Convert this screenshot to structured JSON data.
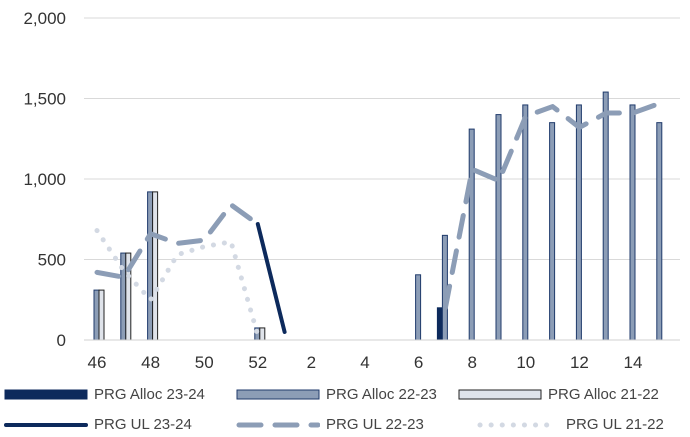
{
  "chart_data": {
    "type": "bar",
    "categories": [
      "46",
      "47",
      "48",
      "49",
      "50",
      "51",
      "52",
      "53",
      "1",
      "2",
      "3",
      "4",
      "5",
      "6",
      "7",
      "8",
      "9",
      "10",
      "11",
      "12",
      "13",
      "14"
    ],
    "x_tick_labels": [
      "46",
      "48",
      "50",
      "52",
      "2",
      "4",
      "6",
      "8",
      "10",
      "12",
      "14"
    ],
    "y_tick_labels": [
      "0",
      "500",
      "1,000",
      "1,500",
      "2,000"
    ],
    "ylim": [
      0,
      2000
    ],
    "grid": true,
    "legend_position": "bottom",
    "colors": {
      "alloc_23_24": "#0d2a5c",
      "alloc_22_23": "#8c9db6",
      "alloc_21_22": "#dfe3ea",
      "ul_23_24": "#0d2a5c",
      "ul_22_23": "#8c9db6",
      "ul_21_22": "#d3d9e3",
      "bar_edge": "#1f3a6b",
      "grid": "#d9d9d9"
    },
    "series": [
      {
        "name": "PRG Alloc 23-24",
        "kind": "bar",
        "values": [
          null,
          null,
          null,
          null,
          null,
          null,
          null,
          null,
          null,
          null,
          null,
          null,
          null,
          200,
          null,
          null,
          null,
          null,
          null,
          null,
          null,
          null
        ]
      },
      {
        "name": "PRG Alloc 22-23",
        "kind": "bar",
        "values": [
          310,
          540,
          920,
          null,
          null,
          null,
          75,
          null,
          null,
          null,
          null,
          null,
          405,
          650,
          1310,
          1400,
          1460,
          1350,
          1460,
          1540,
          1460,
          1350
        ]
      },
      {
        "name": "PRG Alloc 21-22",
        "kind": "bar",
        "values": [
          310,
          540,
          920,
          null,
          null,
          null,
          75,
          null,
          null,
          null,
          null,
          null,
          null,
          null,
          null,
          null,
          null,
          null,
          null,
          null,
          null,
          null
        ]
      },
      {
        "name": "PRG UL 23-24",
        "kind": "line",
        "style": "solid",
        "values": [
          null,
          null,
          null,
          null,
          null,
          null,
          720,
          50,
          null,
          null,
          null,
          null,
          null,
          null,
          null,
          null,
          null,
          null,
          null,
          null,
          null,
          null
        ]
      },
      {
        "name": "PRG UL 22-23",
        "kind": "line",
        "style": "dashed",
        "values": [
          420,
          390,
          660,
          600,
          620,
          840,
          720,
          null,
          null,
          null,
          null,
          null,
          null,
          200,
          1060,
          990,
          1390,
          1450,
          1320,
          1410,
          1410,
          1470
        ]
      },
      {
        "name": "PRG UL 21-22",
        "kind": "line",
        "style": "dotted",
        "values": [
          680,
          430,
          250,
          530,
          580,
          610,
          30,
          null,
          null,
          null,
          null,
          null,
          null,
          null,
          null,
          null,
          null,
          null,
          null,
          null,
          null,
          null
        ]
      }
    ]
  },
  "legend": {
    "alloc_23_24": "PRG Alloc 23-24",
    "alloc_22_23": "PRG Alloc 22-23",
    "alloc_21_22": "PRG Alloc 21-22",
    "ul_23_24": "PRG UL 23-24",
    "ul_22_23": "PRG UL 22-23",
    "ul_21_22": "PRG UL 21-22"
  }
}
